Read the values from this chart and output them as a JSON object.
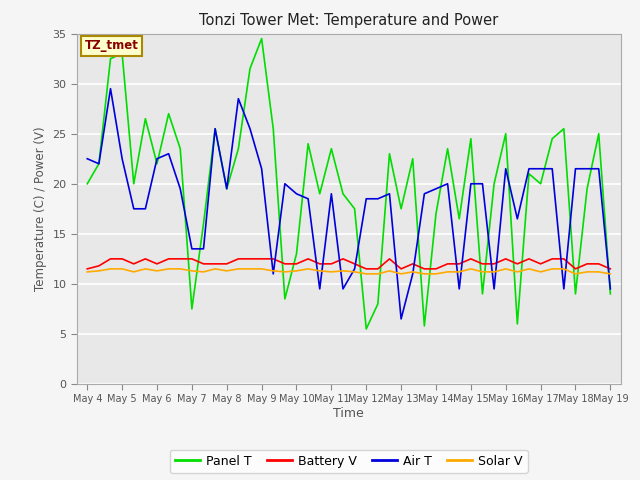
{
  "title": "Tonzi Tower Met: Temperature and Power",
  "xlabel": "Time",
  "ylabel": "Temperature (C) / Power (V)",
  "ylim": [
    0,
    35
  ],
  "yticks": [
    0,
    5,
    10,
    15,
    20,
    25,
    30,
    35
  ],
  "annotation_text": "TZ_tmet",
  "annotation_color": "#880000",
  "annotation_bg": "#ffffcc",
  "annotation_border": "#aa8800",
  "plot_bg": "#e8e8e8",
  "fig_bg": "#f5f5f5",
  "grid_color": "#ffffff",
  "x_labels": [
    "May 4",
    "May 5",
    "May 6",
    "May 7",
    "May 8",
    "May 9",
    "May 10",
    "May 11",
    "May 12",
    "May 13",
    "May 14",
    "May 15",
    "May 16",
    "May 17",
    "May 18",
    "May 19"
  ],
  "series_order": [
    "Panel T",
    "Battery V",
    "Air T",
    "Solar V"
  ],
  "series": {
    "Panel T": {
      "color": "#00dd00",
      "linewidth": 1.2,
      "data": [
        20.0,
        22.0,
        32.5,
        33.0,
        20.0,
        26.5,
        22.0,
        27.0,
        23.5,
        7.5,
        16.0,
        25.5,
        19.5,
        23.5,
        31.5,
        34.5,
        25.5,
        8.5,
        13.0,
        24.0,
        19.0,
        23.5,
        19.0,
        17.5,
        5.5,
        8.0,
        23.0,
        17.5,
        22.5,
        5.8,
        17.0,
        23.5,
        16.5,
        24.5,
        9.0,
        20.0,
        25.0,
        6.0,
        21.0,
        20.0,
        24.5,
        25.5,
        9.0,
        19.5,
        25.0,
        9.0
      ]
    },
    "Battery V": {
      "color": "#ff0000",
      "linewidth": 1.2,
      "data": [
        11.5,
        11.8,
        12.5,
        12.5,
        12.0,
        12.5,
        12.0,
        12.5,
        12.5,
        12.5,
        12.0,
        12.0,
        12.0,
        12.5,
        12.5,
        12.5,
        12.5,
        12.0,
        12.0,
        12.5,
        12.0,
        12.0,
        12.5,
        12.0,
        11.5,
        11.5,
        12.5,
        11.5,
        12.0,
        11.5,
        11.5,
        12.0,
        12.0,
        12.5,
        12.0,
        12.0,
        12.5,
        12.0,
        12.5,
        12.0,
        12.5,
        12.5,
        11.5,
        12.0,
        12.0,
        11.5
      ]
    },
    "Air T": {
      "color": "#0000dd",
      "linewidth": 1.2,
      "data": [
        22.5,
        22.0,
        29.5,
        22.5,
        17.5,
        17.5,
        22.5,
        23.0,
        19.5,
        13.5,
        13.5,
        25.5,
        19.5,
        28.5,
        25.5,
        21.5,
        11.0,
        20.0,
        19.0,
        18.5,
        9.5,
        19.0,
        9.5,
        11.5,
        18.5,
        18.5,
        19.0,
        6.5,
        11.0,
        19.0,
        19.5,
        20.0,
        9.5,
        20.0,
        20.0,
        9.5,
        21.5,
        16.5,
        21.5,
        21.5,
        21.5,
        9.5,
        21.5,
        21.5,
        21.5,
        9.5
      ]
    },
    "Solar V": {
      "color": "#ffaa00",
      "linewidth": 1.2,
      "data": [
        11.2,
        11.3,
        11.5,
        11.5,
        11.2,
        11.5,
        11.3,
        11.5,
        11.5,
        11.3,
        11.2,
        11.5,
        11.3,
        11.5,
        11.5,
        11.5,
        11.3,
        11.2,
        11.3,
        11.5,
        11.3,
        11.2,
        11.3,
        11.2,
        11.0,
        11.0,
        11.3,
        11.0,
        11.2,
        11.0,
        11.0,
        11.2,
        11.2,
        11.5,
        11.2,
        11.2,
        11.5,
        11.2,
        11.5,
        11.2,
        11.5,
        11.5,
        11.0,
        11.2,
        11.2,
        11.0
      ]
    }
  }
}
